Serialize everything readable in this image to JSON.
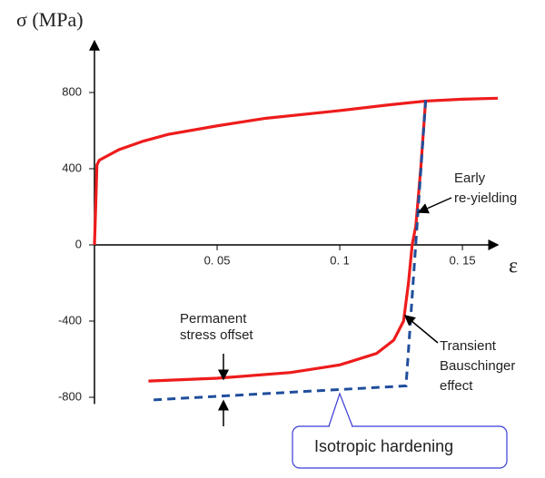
{
  "chart_data": {
    "type": "line",
    "y_label": "σ (MPa)",
    "x_label": "ε",
    "xlim": [
      0,
      0.1644
    ],
    "ylim": [
      -835,
      1070
    ],
    "xticks": [
      {
        "value": 0.05,
        "label": "0. 05"
      },
      {
        "value": 0.1,
        "label": "0. 1"
      },
      {
        "value": 0.15,
        "label": "0. 15"
      }
    ],
    "yticks": [
      800,
      400,
      0,
      -400,
      -800
    ],
    "series": [
      {
        "color": "#ee1c1c",
        "dash": false,
        "x": [
          0,
          0.0005,
          0.001,
          0.002,
          0.01,
          0.02,
          0.03,
          0.05,
          0.07,
          0.1,
          0.12,
          0.135,
          0.15,
          0.1644
        ],
        "values": [
          0,
          200,
          420,
          445,
          500,
          545,
          580,
          625,
          665,
          705,
          735,
          755,
          765,
          770
        ]
      },
      {
        "color": "#ee1c1c",
        "dash": false,
        "x": [
          0.135,
          0.133,
          0.131,
          0.1295,
          0.128,
          0.126,
          0.122,
          0.115,
          0.1,
          0.08,
          0.05,
          0.022
        ],
        "values": [
          760,
          400,
          100,
          0,
          -200,
          -400,
          -500,
          -570,
          -630,
          -670,
          -700,
          -715
        ]
      },
      {
        "color": "#1f4e9c",
        "dash": true,
        "x": [
          0.135,
          0.127,
          0.022
        ],
        "values": [
          760,
          -740,
          -815
        ]
      }
    ],
    "annotations": [
      {
        "lines": [
          "Early",
          "re-yielding"
        ]
      },
      {
        "lines": [
          "Permanent",
          "stress offset"
        ]
      },
      {
        "lines": [
          "Transient",
          "Bauschinger",
          "effect"
        ]
      },
      {
        "lines": [
          "Isotropic hardening"
        ]
      }
    ]
  }
}
